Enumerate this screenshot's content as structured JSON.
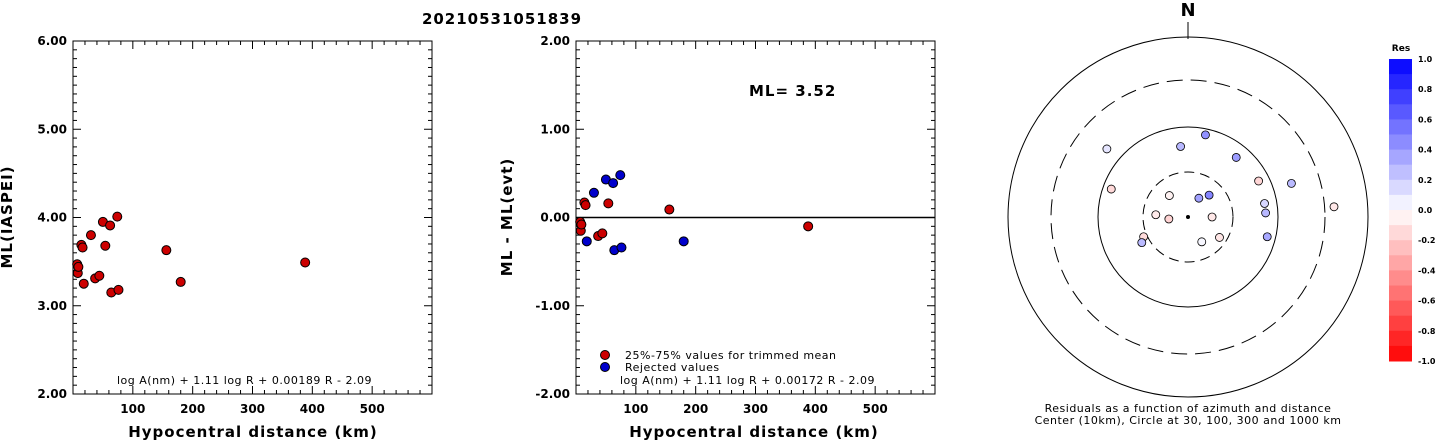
{
  "page_title": "20210531051839",
  "chart_data": [
    {
      "type": "scatter",
      "xlabel": "Hypocentral distance (km)",
      "ylabel": "ML(IASPEI)",
      "xlim": [
        0,
        600
      ],
      "ylim": [
        2.0,
        6.0
      ],
      "x_ticks": [
        "100",
        "200",
        "300",
        "400",
        "500"
      ],
      "y_ticks": [
        "2.00",
        "3.00",
        "4.00",
        "5.00",
        "6.00"
      ],
      "formula": "log A(nm) + 1.11 log R + 0.00189 R - 2.09",
      "series": [
        {
          "color": "#cc0000",
          "points": [
            {
              "x": 7,
              "y": 3.47
            },
            {
              "x": 8,
              "y": 3.37
            },
            {
              "x": 9,
              "y": 3.44
            },
            {
              "x": 14,
              "y": 3.69
            },
            {
              "x": 16,
              "y": 3.66
            },
            {
              "x": 18,
              "y": 3.25
            },
            {
              "x": 30,
              "y": 3.8
            },
            {
              "x": 37,
              "y": 3.31
            },
            {
              "x": 44,
              "y": 3.34
            },
            {
              "x": 50,
              "y": 3.95
            },
            {
              "x": 54,
              "y": 3.68
            },
            {
              "x": 62,
              "y": 3.91
            },
            {
              "x": 64,
              "y": 3.15
            },
            {
              "x": 74,
              "y": 4.01
            },
            {
              "x": 76,
              "y": 3.18
            },
            {
              "x": 156,
              "y": 3.63
            },
            {
              "x": 180,
              "y": 3.27
            },
            {
              "x": 388,
              "y": 3.49
            }
          ]
        }
      ]
    },
    {
      "type": "scatter",
      "xlabel": "Hypocentral distance (km)",
      "ylabel": "ML - ML(evt)",
      "xlim": [
        0,
        600
      ],
      "ylim": [
        -2.0,
        2.0
      ],
      "x_ticks": [
        "100",
        "200",
        "300",
        "400",
        "500"
      ],
      "y_ticks": [
        "-2.00",
        "-1.00",
        "0.00",
        "1.00",
        "2.00"
      ],
      "annotation": "ML= 3.52",
      "formula": "log A(nm) + 1.11 log R + 0.00172 R - 2.09",
      "reference_line_y": 0,
      "legend": {
        "placement": "bottom-left",
        "items": [
          {
            "label": "25%-75% values for trimmed mean",
            "color": "#cc0000"
          },
          {
            "label": "Rejected values",
            "color": "#0000cc"
          }
        ]
      },
      "series": [
        {
          "name": "25%-75% values for trimmed mean",
          "color": "#cc0000",
          "points": [
            {
              "x": 7,
              "y": -0.05
            },
            {
              "x": 8,
              "y": -0.15
            },
            {
              "x": 9,
              "y": -0.08
            },
            {
              "x": 14,
              "y": 0.17
            },
            {
              "x": 16,
              "y": 0.14
            },
            {
              "x": 37,
              "y": -0.21
            },
            {
              "x": 44,
              "y": -0.18
            },
            {
              "x": 54,
              "y": 0.16
            },
            {
              "x": 156,
              "y": 0.09
            },
            {
              "x": 388,
              "y": -0.1
            }
          ]
        },
        {
          "name": "Rejected values",
          "color": "#0000cc",
          "points": [
            {
              "x": 18,
              "y": -0.27
            },
            {
              "x": 30,
              "y": 0.28
            },
            {
              "x": 50,
              "y": 0.43
            },
            {
              "x": 62,
              "y": 0.39
            },
            {
              "x": 64,
              "y": -0.37
            },
            {
              "x": 74,
              "y": 0.48
            },
            {
              "x": 76,
              "y": -0.34
            },
            {
              "x": 180,
              "y": -0.27
            }
          ]
        }
      ]
    },
    {
      "type": "scatter",
      "subtype": "polar-residuals",
      "north_label": "N",
      "caption_line1": "Residuals as a function of azimuth and distance",
      "caption_line2": "Center (10km), Circle at 30, 100, 300 and 1000 km",
      "rings_km": [
        30,
        100,
        300,
        1000
      ],
      "center_km": 10,
      "colorbar": {
        "title": "Res",
        "range": [
          -1.0,
          1.0
        ],
        "ticks": [
          "1.0",
          "0.8",
          "0.6",
          "0.4",
          "0.2",
          "0.0",
          "-0.2",
          "-0.4",
          "-0.6",
          "-0.8",
          "-1.0"
        ],
        "positive_color": "#0000ff",
        "negative_color": "#ff0000"
      },
      "stations": [
        {
          "azimuth": 310,
          "distance_km": 145,
          "residual": 0.1
        },
        {
          "azimuth": 319,
          "distance_km": 20,
          "residual": -0.05
        },
        {
          "azimuth": 290,
          "distance_km": 80,
          "residual": -0.15
        },
        {
          "azimuth": 274,
          "distance_km": 22,
          "residual": -0.08
        },
        {
          "azimuth": 264,
          "distance_km": 16,
          "residual": -0.17
        },
        {
          "azimuth": 246,
          "distance_km": 33,
          "residual": -0.14
        },
        {
          "azimuth": 241,
          "distance_km": 37,
          "residual": 0.27
        },
        {
          "azimuth": 354,
          "distance_km": 60,
          "residual": 0.28
        },
        {
          "azimuth": 12,
          "distance_km": 85,
          "residual": 0.43
        },
        {
          "azimuth": 39,
          "distance_km": 70,
          "residual": 0.39
        },
        {
          "azimuth": 30,
          "distance_km": 17,
          "residual": 0.37
        },
        {
          "azimuth": 44,
          "distance_km": 21,
          "residual": 0.48
        },
        {
          "azimuth": 104,
          "distance_km": 80,
          "residual": 0.34
        },
        {
          "azimuth": 72,
          "distance_km": 155,
          "residual": 0.27
        },
        {
          "azimuth": 63,
          "distance_km": 75,
          "residual": -0.16
        },
        {
          "azimuth": 80,
          "distance_km": 72,
          "residual": 0.16
        },
        {
          "azimuth": 87,
          "distance_km": 72,
          "residual": 0.28
        },
        {
          "azimuth": 86,
          "distance_km": 390,
          "residual": -0.09
        },
        {
          "azimuth": 90,
          "distance_km": 18,
          "residual": -0.09
        },
        {
          "azimuth": 123,
          "distance_km": 25,
          "residual": -0.1
        },
        {
          "azimuth": 151,
          "distance_km": 20,
          "residual": 0.03
        }
      ]
    }
  ]
}
